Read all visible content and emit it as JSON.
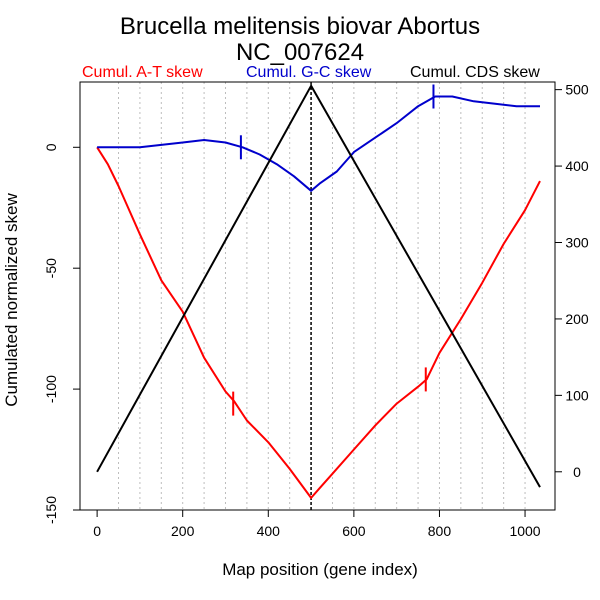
{
  "chart_data": {
    "type": "line",
    "title": "Brucella melitensis biovar Abortus",
    "subtitle": "NC_007624",
    "xlabel": "Map position (gene index)",
    "ylabel": "Cumulated normalized skew",
    "xlim": [
      -40,
      1070
    ],
    "ylim_left": [
      -150,
      27
    ],
    "ylim_right": [
      -50,
      510
    ],
    "x_ticks": [
      0,
      200,
      400,
      600,
      800,
      1000
    ],
    "y_ticks_left": [
      0,
      -50,
      -100,
      -150
    ],
    "y_ticks_right": [
      0,
      100,
      200,
      300,
      400,
      500
    ],
    "vertical_grid": [
      50,
      100,
      150,
      200,
      250,
      300,
      350,
      400,
      450,
      550,
      600,
      650,
      700,
      750,
      800,
      850,
      900,
      950,
      1000
    ],
    "grid": true,
    "legend_placement": "top",
    "origin_line_x": 500,
    "series": [
      {
        "name": "Cumul. A-T skew",
        "color": "#ff0000",
        "axis": "left",
        "x": [
          0,
          25,
          50,
          100,
          150,
          200,
          250,
          300,
          320,
          350,
          400,
          450,
          500,
          520,
          550,
          600,
          650,
          700,
          750,
          770,
          800,
          850,
          900,
          950,
          1000,
          1035
        ],
        "y": [
          0,
          -7,
          -16,
          -36,
          -55,
          -68,
          -87,
          -101,
          -105,
          -113,
          -122,
          -133,
          -145,
          -141,
          -135,
          -125,
          -115,
          -106,
          -99,
          -96,
          -85,
          -71,
          -56,
          -40,
          -26,
          -14
        ],
        "markers": [
          {
            "x": 318,
            "y": -106
          },
          {
            "x": 768,
            "y": -96
          }
        ]
      },
      {
        "name": "Cumul. G-C skew",
        "color": "#0000cc",
        "axis": "left",
        "x": [
          0,
          50,
          100,
          150,
          200,
          250,
          300,
          340,
          380,
          420,
          460,
          500,
          520,
          560,
          600,
          650,
          700,
          750,
          790,
          830,
          880,
          930,
          980,
          1035
        ],
        "y": [
          0,
          0,
          0,
          1,
          2,
          3,
          2,
          0,
          -3,
          -7,
          -12,
          -18,
          -15,
          -10,
          -2,
          4,
          10,
          17,
          21,
          21,
          19,
          18,
          17,
          17
        ],
        "markers": [
          {
            "x": 336,
            "y": 0
          },
          {
            "x": 786,
            "y": 21
          }
        ]
      },
      {
        "name": "Cumul. CDS skew",
        "color": "#000000",
        "axis": "right",
        "x": [
          0,
          500,
          1035
        ],
        "y": [
          0,
          505,
          -20
        ]
      }
    ]
  }
}
